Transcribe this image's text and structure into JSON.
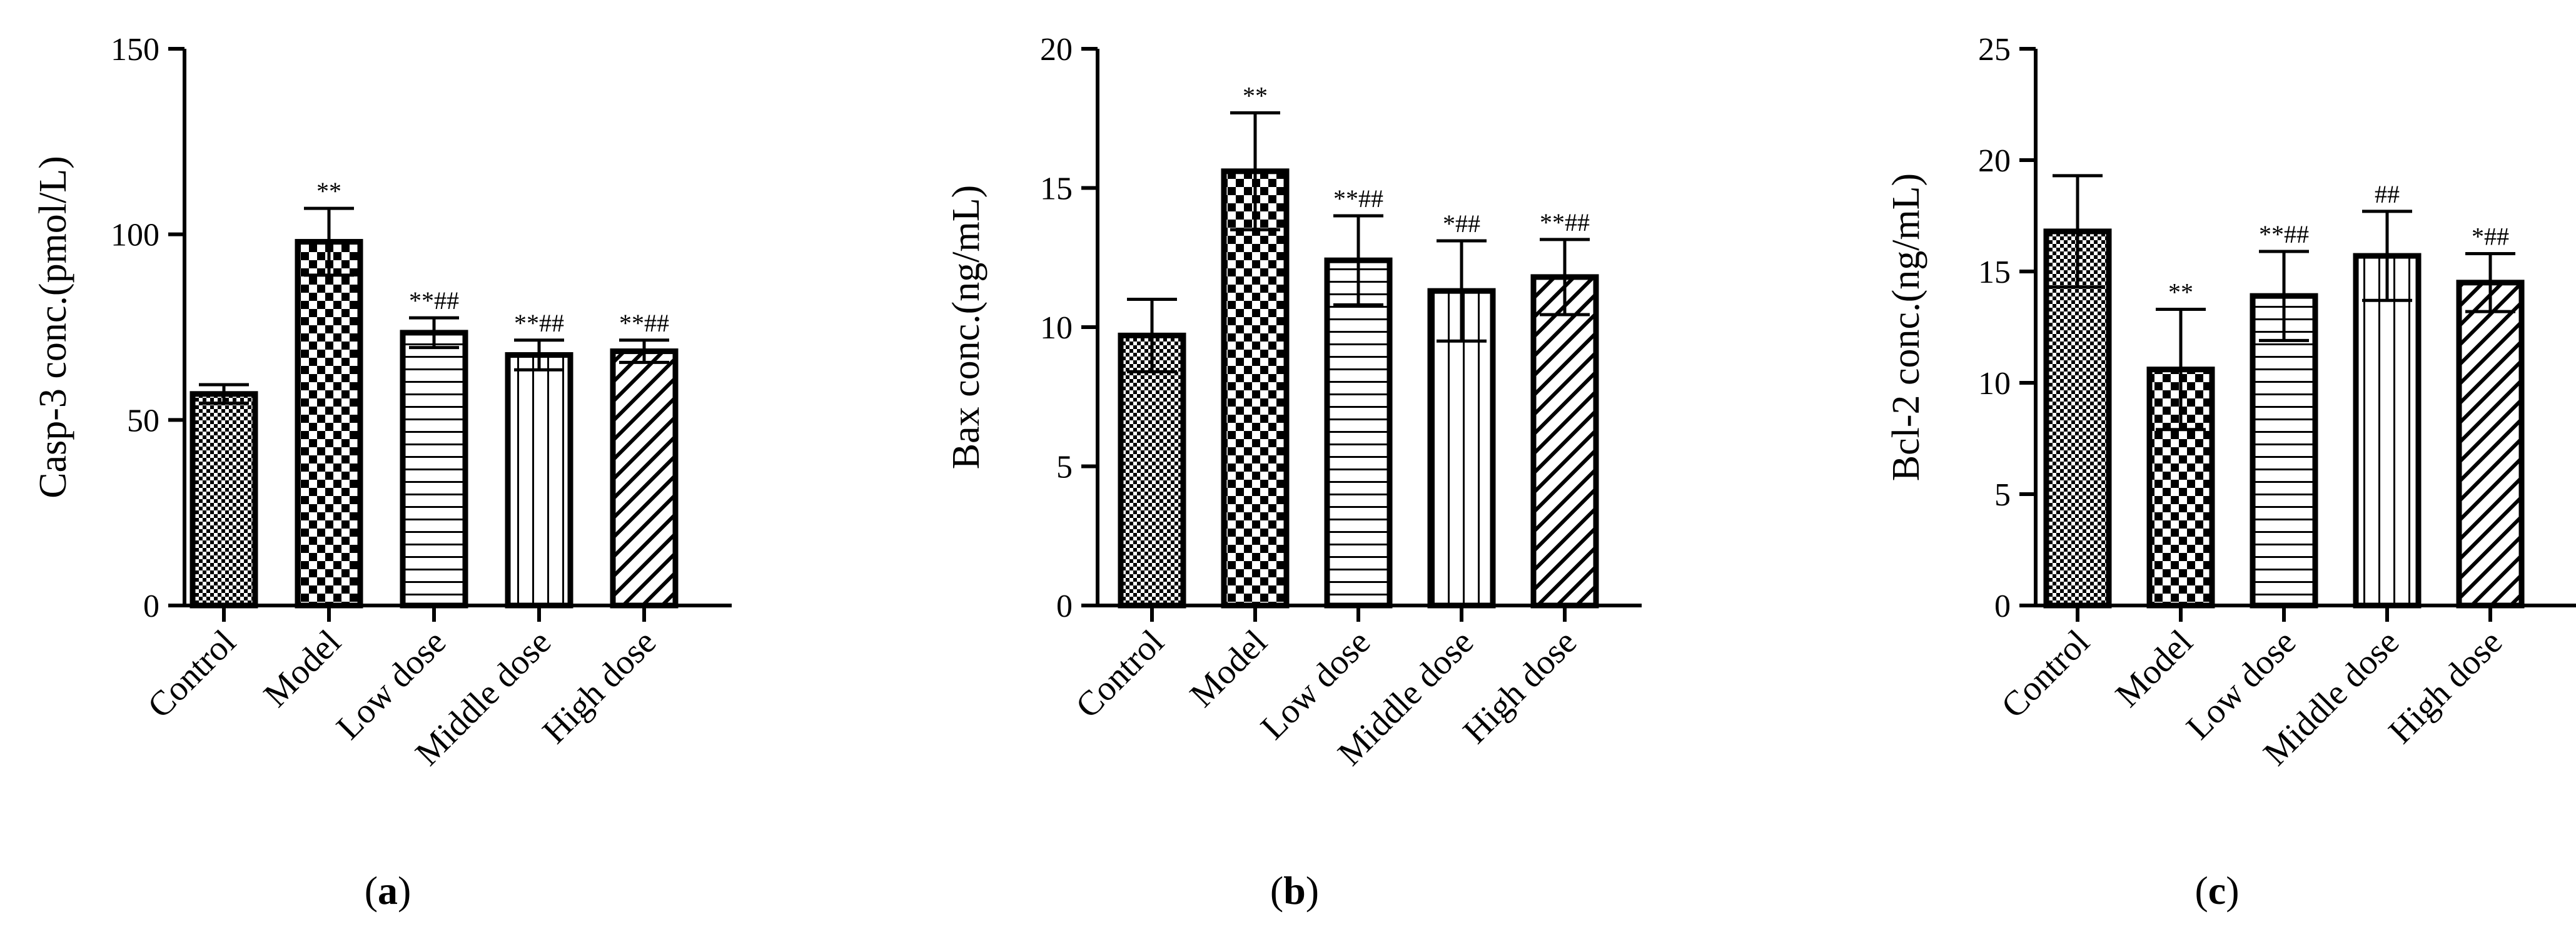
{
  "chart_data": [
    {
      "type": "bar",
      "panel_label": "a",
      "ylabel": "Casp-3 conc.(pmol/L)",
      "xlabel": "",
      "ylim": [
        0,
        150
      ],
      "yticks": [
        0,
        50,
        100,
        150
      ],
      "categories": [
        "Control",
        "Model",
        "Low dose",
        "Middle dose",
        "High dose"
      ],
      "values": [
        57,
        98,
        73.5,
        67.5,
        68.5
      ],
      "errors": [
        2.5,
        9,
        4,
        4,
        3
      ],
      "significance": [
        "",
        "**",
        "**##",
        "**##",
        "**##"
      ],
      "patterns": [
        "dense-check",
        "checker",
        "horizontal",
        "vertical",
        "diagonal"
      ]
    },
    {
      "type": "bar",
      "panel_label": "b",
      "ylabel": "Bax conc.(ng/mL)",
      "xlabel": "",
      "ylim": [
        0,
        20
      ],
      "yticks": [
        0,
        5,
        10,
        15,
        20
      ],
      "categories": [
        "Control",
        "Model",
        "Low dose",
        "Middle dose",
        "High dose"
      ],
      "values": [
        9.7,
        15.6,
        12.4,
        11.3,
        11.8
      ],
      "errors": [
        1.3,
        2.1,
        1.6,
        1.8,
        1.35
      ],
      "significance": [
        "",
        "**",
        "**##",
        "*##",
        "**##"
      ],
      "patterns": [
        "dense-check",
        "checker",
        "horizontal",
        "vertical",
        "diagonal"
      ]
    },
    {
      "type": "bar",
      "panel_label": "c",
      "ylabel": "Bcl-2 conc.(ng/mL)",
      "xlabel": "",
      "ylim": [
        0,
        25
      ],
      "yticks": [
        0,
        5,
        10,
        15,
        20,
        25
      ],
      "categories": [
        "Control",
        "Model",
        "Low dose",
        "Middle dose",
        "High dose"
      ],
      "values": [
        16.8,
        10.6,
        13.9,
        15.7,
        14.5
      ],
      "errors": [
        2.5,
        2.7,
        2.0,
        2.0,
        1.3
      ],
      "significance": [
        "",
        "**",
        "**##",
        "##",
        "*##"
      ],
      "patterns": [
        "dense-check",
        "checker",
        "horizontal",
        "vertical",
        "diagonal"
      ]
    }
  ]
}
